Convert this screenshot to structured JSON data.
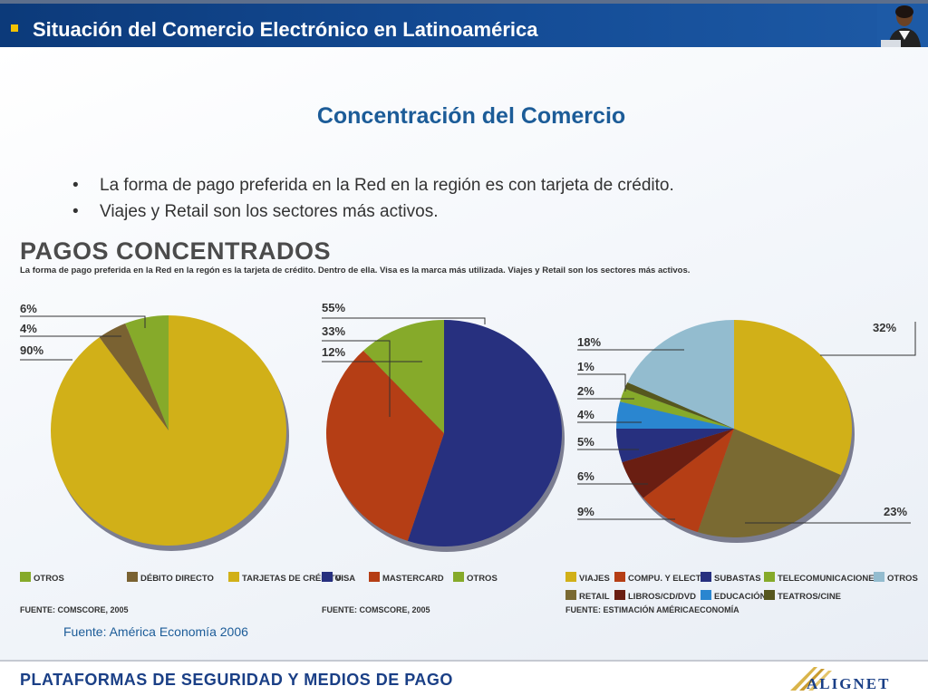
{
  "header": {
    "title": "Situación del Comercio Electrónico en Latinoamérica"
  },
  "heading": "Concentración del Comercio",
  "bullets": [
    "La forma de pago preferida en la Red en la región es con tarjeta de crédito.",
    "Viajes y Retail son los sectores más activos."
  ],
  "panel": {
    "title": "PAGOS CONCENTRADOS",
    "subtitle": "La forma de pago preferida en la Red en la regón es la tarjeta de crédito. Dentro de ella. Visa es la marca más utilizada. Viajes y Retail son los sectores más activos."
  },
  "sources": {
    "chart1": "FUENTE: COMSCORE, 2005",
    "chart2": "FUENTE: COMSCORE, 2005",
    "chart3": "FUENTE: ESTIMACIÓN AMÉRICAECONOMÍA",
    "overall": "Fuente: América Economía 2006"
  },
  "footer": {
    "text": "PLATAFORMAS DE SEGURIDAD Y MEDIOS DE PAGO",
    "logo": "ALIGNET"
  },
  "colors": {
    "header": "#0c3a7a",
    "heading": "#1c5c98",
    "accent": "#f2c200"
  },
  "chart_data": [
    {
      "type": "pie",
      "slices": [
        {
          "name": "TARJETAS DE CRÉDITO",
          "value": 90,
          "label": "90%",
          "color": "#d1b018"
        },
        {
          "name": "DÉBITO DIRECTO",
          "value": 4,
          "label": "4%",
          "color": "#7a6232"
        },
        {
          "name": "OTROS",
          "value": 6,
          "label": "6%",
          "color": "#86aa2a"
        }
      ],
      "legend": "bottom"
    },
    {
      "type": "pie",
      "slices": [
        {
          "name": "VISA",
          "value": 55,
          "label": "55%",
          "color": "#27307f"
        },
        {
          "name": "MASTERCARD",
          "value": 33,
          "label": "33%",
          "color": "#b53e15"
        },
        {
          "name": "OTROS",
          "value": 12,
          "label": "12%",
          "color": "#86aa2a"
        }
      ],
      "legend": "bottom"
    },
    {
      "type": "pie",
      "slices": [
        {
          "name": "VIAJES",
          "value": 32,
          "label": "32%",
          "color": "#d1b018"
        },
        {
          "name": "RETAIL",
          "value": 23,
          "label": "23%",
          "color": "#7a6a32"
        },
        {
          "name": "COMPU. Y ELECT.",
          "value": 9,
          "label": "9%",
          "color": "#b53e15"
        },
        {
          "name": "LIBROS/CD/DVD",
          "value": 6,
          "label": "6%",
          "color": "#6a1e12"
        },
        {
          "name": "SUBASTAS",
          "value": 5,
          "label": "5%",
          "color": "#27307f"
        },
        {
          "name": "EDUCACIÓN",
          "value": 4,
          "label": "4%",
          "color": "#2a86d0"
        },
        {
          "name": "TELECOMUNICACIONES",
          "value": 2,
          "label": "2%",
          "color": "#86aa2a"
        },
        {
          "name": "TEATROS/CINE",
          "value": 1,
          "label": "1%",
          "color": "#56571e"
        },
        {
          "name": "OTROS",
          "value": 18,
          "label": "18%",
          "color": "#93bccf"
        }
      ],
      "legend": "bottom"
    }
  ]
}
